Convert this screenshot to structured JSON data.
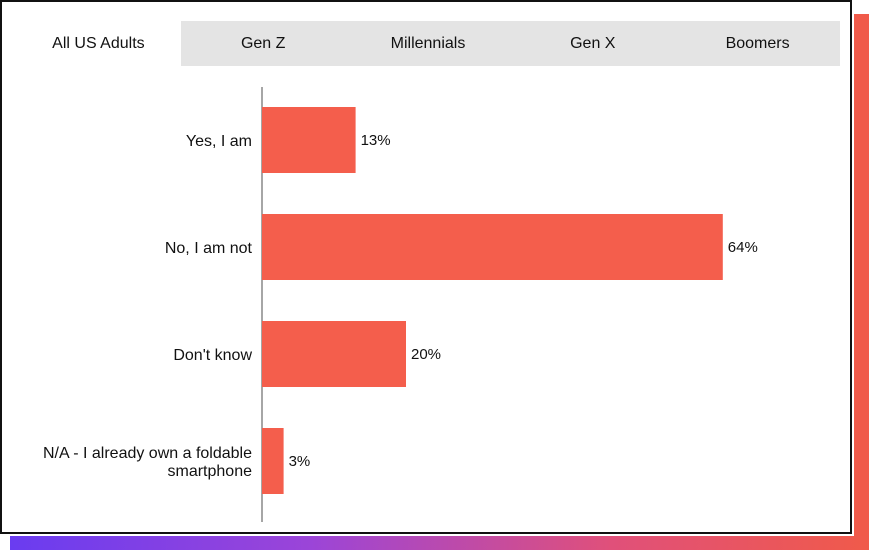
{
  "tabs": [
    {
      "label": "All US Adults",
      "active": true
    },
    {
      "label": "Gen Z",
      "active": false
    },
    {
      "label": "Millennials",
      "active": false
    },
    {
      "label": "Gen X",
      "active": false
    },
    {
      "label": "Boomers",
      "active": false
    }
  ],
  "colors": {
    "bar": "#f45e4c",
    "axis": "#888888",
    "accent_right": "#f05a4a"
  },
  "chart_data": {
    "type": "bar",
    "orientation": "horizontal",
    "categories": [
      [
        "Yes, I am"
      ],
      [
        "No, I am not"
      ],
      [
        "Don't know"
      ],
      [
        "N/A - I already own a foldable",
        "smartphone"
      ]
    ],
    "values": [
      13,
      64,
      20,
      3
    ],
    "value_labels": [
      "13%",
      "64%",
      "20%",
      "3%"
    ],
    "xlim": [
      0,
      70
    ],
    "grid": false,
    "title": "",
    "xlabel": "",
    "ylabel": ""
  }
}
